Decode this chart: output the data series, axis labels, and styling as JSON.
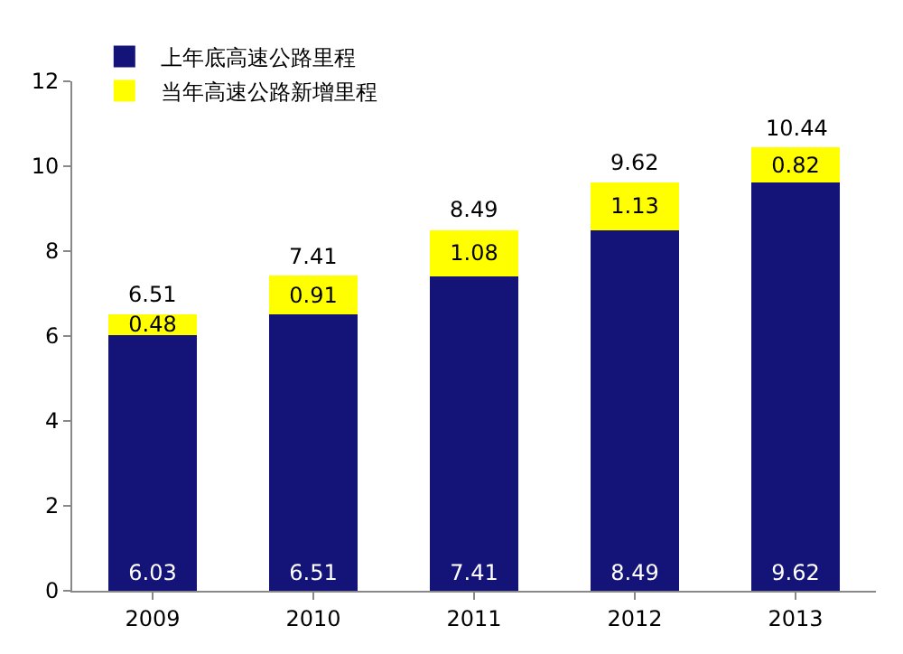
{
  "chart_data": {
    "type": "bar",
    "stacked": true,
    "categories": [
      "2009",
      "2010",
      "2011",
      "2012",
      "2013"
    ],
    "series": [
      {
        "name": "上年底高速公路里程",
        "color": "#141478",
        "values": [
          6.03,
          6.51,
          7.41,
          8.49,
          9.62
        ]
      },
      {
        "name": "当年高速公路新增里程",
        "color": "#ffff00",
        "values": [
          0.48,
          0.91,
          1.08,
          1.13,
          0.82
        ]
      }
    ],
    "totals": [
      "6.51",
      "7.41",
      "8.49",
      "9.62",
      "10.44"
    ],
    "data_labels": true,
    "ylim": [
      0,
      12
    ],
    "yticks": [
      0,
      2,
      4,
      6,
      8,
      10,
      12
    ],
    "grid": false,
    "legend": "top left"
  }
}
